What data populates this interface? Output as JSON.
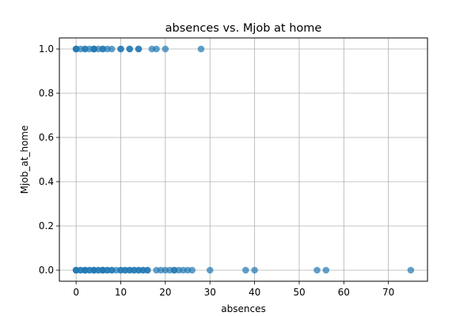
{
  "chart_data": {
    "type": "scatter",
    "title": "absences vs. Mjob at home",
    "xlabel": "absences",
    "ylabel": "Mjob_at_home",
    "xlim": [
      -3.75,
      78.75
    ],
    "ylim": [
      -0.05,
      1.05
    ],
    "xticks": [
      0,
      10,
      20,
      30,
      40,
      50,
      60,
      70
    ],
    "yticks": [
      0.0,
      0.2,
      0.4,
      0.6,
      0.8,
      1.0
    ],
    "xtick_labels": [
      "0",
      "10",
      "20",
      "30",
      "40",
      "50",
      "60",
      "70"
    ],
    "ytick_labels": [
      "0.0",
      "0.2",
      "0.4",
      "0.6",
      "0.8",
      "1.0"
    ],
    "grid": true,
    "legend": "none",
    "point_color": "#1f77b4",
    "point_alpha": 0.7,
    "series": [
      {
        "x": [
          0,
          0,
          0,
          1,
          2,
          2,
          3,
          4,
          4,
          4,
          5,
          6,
          6,
          7,
          8,
          10,
          10,
          12,
          12,
          14,
          14,
          17,
          18,
          20,
          28,
          0,
          0,
          0,
          1,
          1,
          2,
          2,
          2,
          3,
          3,
          4,
          4,
          4,
          5,
          5,
          6,
          6,
          6,
          7,
          7,
          8,
          8,
          9,
          10,
          10,
          11,
          11,
          12,
          12,
          13,
          13,
          14,
          14,
          15,
          15,
          16,
          16,
          18,
          19,
          20,
          21,
          22,
          22,
          23,
          24,
          25,
          26,
          30,
          38,
          40,
          54,
          56,
          75
        ],
        "y": [
          1,
          1,
          1,
          1,
          1,
          1,
          1,
          1,
          1,
          1,
          1,
          1,
          1,
          1,
          1,
          1,
          1,
          1,
          1,
          1,
          1,
          1,
          1,
          1,
          1,
          0,
          0,
          0,
          0,
          0,
          0,
          0,
          0,
          0,
          0,
          0,
          0,
          0,
          0,
          0,
          0,
          0,
          0,
          0,
          0,
          0,
          0,
          0,
          0,
          0,
          0,
          0,
          0,
          0,
          0,
          0,
          0,
          0,
          0,
          0,
          0,
          0,
          0,
          0,
          0,
          0,
          0,
          0,
          0,
          0,
          0,
          0,
          0,
          0,
          0,
          0,
          0,
          0
        ]
      }
    ]
  }
}
